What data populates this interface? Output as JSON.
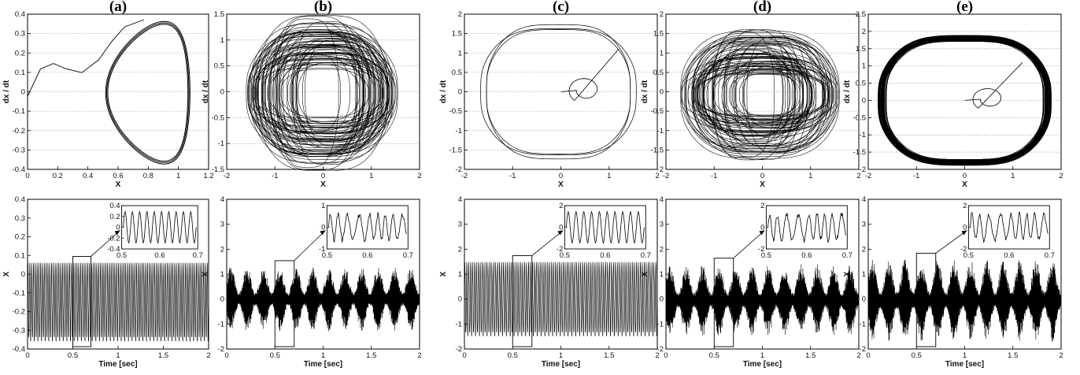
{
  "figure": {
    "panels": [
      {
        "letter": "(a)",
        "phase": {
          "xlabel": "X",
          "ylabel": "dx / dt",
          "xticks": [
            "0",
            "0.2",
            "0.4",
            "0.6",
            "0.8",
            "1",
            "1.2"
          ],
          "yticks": [
            "-0.4",
            "-0.3",
            "-0.2",
            "-0.1",
            "0",
            "0.1",
            "0.2",
            "0.3",
            "0.4"
          ]
        },
        "time": {
          "xlabel": "Time [sec]",
          "ylabel": "X",
          "xticks": [
            "0",
            "0.5",
            "1",
            "1.5",
            "2"
          ],
          "yticks": [
            "-0.4",
            "-0.3",
            "-0.2",
            "-0.1",
            "0",
            "0.1",
            "0.2",
            "0.3",
            "0.4"
          ],
          "inset_xticks": [
            "0.5",
            "0.6",
            "0.7"
          ],
          "inset_yticks": [
            "0.4",
            "0.2",
            "0",
            "-0.2",
            "-0.4"
          ]
        }
      },
      {
        "letter": "(b)",
        "phase": {
          "xlabel": "X",
          "ylabel": "dx / dt",
          "xticks": [
            "-2",
            "-1",
            "0",
            "1",
            "2"
          ],
          "yticks": [
            "-1.5",
            "-1",
            "-0.5",
            "0",
            "0.5",
            "1",
            "1.5"
          ]
        },
        "time": {
          "xlabel": "Time [sec]",
          "ylabel": "X",
          "xticks": [
            "0",
            "0.5",
            "1",
            "1.5",
            "2"
          ],
          "yticks": [
            "-2",
            "-1",
            "0",
            "1",
            "2",
            "3",
            "4"
          ],
          "inset_xticks": [
            "0.5",
            "0.6",
            "0.7"
          ],
          "inset_yticks": [
            "1",
            "0",
            "-1"
          ]
        }
      },
      {
        "letter": "(c)",
        "phase": {
          "xlabel": "X",
          "ylabel": "dx / dt",
          "xticks": [
            "-2",
            "-1",
            "0",
            "1",
            "2"
          ],
          "yticks": [
            "-2",
            "-1.5",
            "-1",
            "-0.5",
            "0",
            "0.5",
            "1",
            "1.5",
            "2"
          ]
        },
        "time": {
          "xlabel": "Time [sec]",
          "ylabel": "X",
          "xticks": [
            "0",
            "0.5",
            "1",
            "1.5",
            "2"
          ],
          "yticks": [
            "-2",
            "-1",
            "0",
            "1",
            "2",
            "3",
            "4"
          ],
          "inset_xticks": [
            "0.5",
            "0.6",
            "0.7"
          ],
          "inset_yticks": [
            "2",
            "0",
            "-2"
          ]
        }
      },
      {
        "letter": "(d)",
        "phase": {
          "xlabel": "X",
          "ylabel": "dx / dt",
          "xticks": [
            "-2",
            "-1",
            "0",
            "1",
            "2"
          ],
          "yticks": [
            "-2",
            "-1.5",
            "-1",
            "-0.5",
            "0",
            "0.5",
            "1",
            "1.5",
            "2"
          ]
        },
        "time": {
          "xlabel": "Time [sec]",
          "ylabel": "X",
          "xticks": [
            "0",
            "0.5",
            "1",
            "1.5",
            "2"
          ],
          "yticks": [
            "-2",
            "-1",
            "0",
            "1",
            "2",
            "3",
            "4"
          ],
          "inset_xticks": [
            "0.5",
            "0.6",
            "0.7"
          ],
          "inset_yticks": [
            "2",
            "0",
            "-2"
          ]
        }
      },
      {
        "letter": "(e)",
        "phase": {
          "xlabel": "X",
          "ylabel": "dx / dt",
          "xticks": [
            "-2",
            "-1",
            "0",
            "1",
            "2"
          ],
          "yticks": [
            "-2",
            "-1.5",
            "-1",
            "-0.5",
            "0",
            "0.5",
            "1",
            "1.5",
            "2",
            "2.5"
          ]
        },
        "time": {
          "xlabel": "Time [sec]",
          "ylabel": "X",
          "xticks": [
            "0",
            "0.5",
            "1",
            "1.5",
            "2"
          ],
          "yticks": [
            "-2",
            "-1",
            "0",
            "1",
            "2",
            "3",
            "4"
          ],
          "inset_xticks": [
            "0.5",
            "0.6",
            "0.7"
          ],
          "inset_yticks": [
            "2",
            "0",
            "-2"
          ]
        }
      }
    ]
  },
  "chart_data": [
    {
      "type": "line",
      "panel": "(a)",
      "kind": "phase-portrait",
      "behavior": "periodic limit cycle",
      "xlabel": "X",
      "ylabel": "dx / dt",
      "xlim": [
        0,
        1.4
      ],
      "ylim": [
        -0.4,
        0.45
      ],
      "grid": "horizontal dotted",
      "x": [
        0.0,
        0.1,
        0.2,
        0.3,
        0.42,
        0.55,
        0.65,
        0.75,
        0.9,
        1.05,
        1.15,
        1.25,
        1.28,
        1.25,
        1.1,
        0.95,
        0.8,
        0.7,
        0.65,
        0.72,
        0.85,
        1.0,
        1.15,
        1.2
      ],
      "y": [
        0.0,
        0.15,
        0.18,
        0.15,
        0.13,
        0.2,
        0.3,
        0.38,
        0.42,
        0.41,
        0.35,
        0.1,
        -0.1,
        -0.25,
        -0.33,
        -0.3,
        -0.22,
        -0.1,
        0.05,
        0.22,
        0.35,
        0.39,
        0.33,
        0.25
      ]
    },
    {
      "type": "line",
      "panel": "(a)",
      "kind": "time-series",
      "behavior": "periodic",
      "xlabel": "Time [sec]",
      "ylabel": "X",
      "xlim": [
        0,
        2
      ],
      "ylim": [
        -0.4,
        1.0
      ],
      "amplitude": [
        -0.33,
        0.41
      ],
      "cycles_per_sec": 50,
      "inset": {
        "xlim": [
          0.5,
          0.7
        ],
        "ylim": [
          -0.5,
          0.5
        ]
      }
    },
    {
      "type": "line",
      "panel": "(b)",
      "kind": "phase-portrait",
      "behavior": "chaotic double-scroll",
      "xlabel": "X",
      "ylabel": "dx / dt",
      "xlim": [
        -2,
        2
      ],
      "ylim": [
        -1.5,
        1.5
      ],
      "envelope_x": [
        -1.6,
        1.55
      ],
      "envelope_y": [
        -1.3,
        1.25
      ]
    },
    {
      "type": "line",
      "panel": "(b)",
      "kind": "time-series",
      "behavior": "chaotic",
      "xlabel": "Time [sec]",
      "ylabel": "X",
      "xlim": [
        0,
        2
      ],
      "ylim": [
        -2,
        4
      ],
      "amplitude": [
        -1.3,
        1.3
      ],
      "inset": {
        "xlim": [
          0.5,
          0.7
        ],
        "ylim": [
          -1.5,
          1.5
        ]
      }
    },
    {
      "type": "line",
      "panel": "(c)",
      "kind": "phase-portrait",
      "behavior": "periodic limit cycle with transient",
      "xlabel": "X",
      "ylabel": "dx / dt",
      "xlim": [
        -2,
        2
      ],
      "ylim": [
        -2,
        2
      ],
      "envelope_x": [
        -1.7,
        1.6
      ],
      "envelope_y": [
        -1.5,
        1.5
      ]
    },
    {
      "type": "line",
      "panel": "(c)",
      "kind": "time-series",
      "behavior": "periodic",
      "xlabel": "Time [sec]",
      "ylabel": "X",
      "xlim": [
        0,
        2
      ],
      "ylim": [
        -2,
        4
      ],
      "amplitude": [
        -1.5,
        1.5
      ],
      "inset": {
        "xlim": [
          0.5,
          0.7
        ],
        "ylim": [
          -2,
          2
        ]
      }
    },
    {
      "type": "line",
      "panel": "(d)",
      "kind": "phase-portrait",
      "behavior": "chaotic",
      "xlabel": "X",
      "ylabel": "dx / dt",
      "xlim": [
        -2,
        2
      ],
      "ylim": [
        -2,
        2
      ],
      "envelope_x": [
        -1.7,
        1.6
      ],
      "envelope_y": [
        -1.5,
        1.35
      ]
    },
    {
      "type": "line",
      "panel": "(d)",
      "kind": "time-series",
      "behavior": "chaotic",
      "xlabel": "Time [sec]",
      "ylabel": "X",
      "xlim": [
        0,
        2
      ],
      "ylim": [
        -2,
        4
      ],
      "amplitude": [
        -1.5,
        1.4
      ],
      "inset": {
        "xlim": [
          0.5,
          0.7
        ],
        "ylim": [
          -2,
          2
        ]
      }
    },
    {
      "type": "line",
      "panel": "(e)",
      "kind": "phase-portrait",
      "behavior": "periodic-chaotic band",
      "xlabel": "X",
      "ylabel": "dx / dt",
      "xlim": [
        -2,
        2
      ],
      "ylim": [
        -2,
        2.5
      ],
      "envelope_x": [
        -1.8,
        1.8
      ],
      "envelope_y": [
        -1.6,
        1.6
      ]
    },
    {
      "type": "line",
      "panel": "(e)",
      "kind": "time-series",
      "behavior": "quasi-periodic",
      "xlabel": "Time [sec]",
      "ylabel": "X",
      "xlim": [
        0,
        2
      ],
      "ylim": [
        -2,
        4
      ],
      "amplitude": [
        -1.7,
        1.6
      ],
      "inset": {
        "xlim": [
          0.5,
          0.7
        ],
        "ylim": [
          -2,
          2
        ]
      }
    }
  ]
}
